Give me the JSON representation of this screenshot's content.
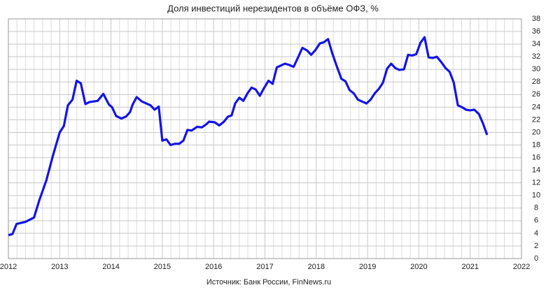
{
  "chart_data": {
    "type": "line",
    "title": "Доля инвестиций нерезидентов в объёме ОФЗ, %",
    "source": "Источник: Банк России, FinNews.ru",
    "xlim": [
      2012,
      2022
    ],
    "xticks": [
      2012,
      2013,
      2014,
      2015,
      2016,
      2017,
      2018,
      2019,
      2020,
      2021,
      2022
    ],
    "ylim": [
      0,
      38
    ],
    "yticks": [
      0,
      2,
      4,
      6,
      8,
      10,
      12,
      14,
      16,
      18,
      20,
      22,
      24,
      26,
      28,
      30,
      32,
      34,
      36,
      38
    ],
    "grid": true,
    "y_axis_side": "right",
    "series": [
      {
        "color": "#1414e6",
        "x": [
          2012.0,
          2012.08,
          2012.16,
          2012.33,
          2012.5,
          2012.6,
          2012.74,
          2012.87,
          2013.0,
          2013.08,
          2013.16,
          2013.25,
          2013.33,
          2013.41,
          2013.5,
          2013.58,
          2013.74,
          2013.85,
          2013.96,
          2014.02,
          2014.1,
          2014.2,
          2014.29,
          2014.37,
          2014.42,
          2014.5,
          2014.6,
          2014.77,
          2014.85,
          2014.93,
          2015.0,
          2015.08,
          2015.16,
          2015.25,
          2015.33,
          2015.41,
          2015.49,
          2015.57,
          2015.68,
          2015.77,
          2015.86,
          2015.91,
          2016.02,
          2016.11,
          2016.2,
          2016.28,
          2016.35,
          2016.42,
          2016.5,
          2016.58,
          2016.66,
          2016.74,
          2016.82,
          2016.9,
          2016.98,
          2017.07,
          2017.15,
          2017.23,
          2017.31,
          2017.39,
          2017.47,
          2017.56,
          2017.64,
          2017.73,
          2017.82,
          2017.9,
          2017.98,
          2018.07,
          2018.15,
          2018.23,
          2018.31,
          2018.39,
          2018.49,
          2018.57,
          2018.65,
          2018.73,
          2018.81,
          2018.89,
          2018.98,
          2019.06,
          2019.14,
          2019.22,
          2019.3,
          2019.38,
          2019.46,
          2019.54,
          2019.62,
          2019.71,
          2019.79,
          2019.87,
          2019.95,
          2020.03,
          2020.11,
          2020.19,
          2020.27,
          2020.35,
          2020.44,
          2020.52,
          2020.6,
          2020.68,
          2020.76,
          2020.84,
          2020.92,
          2021.0,
          2021.08,
          2021.17,
          2021.25,
          2021.33
        ],
        "values": [
          3.7,
          3.9,
          5.5,
          5.8,
          6.5,
          9.2,
          12.4,
          16.4,
          20.0,
          21.0,
          24.3,
          25.2,
          28.2,
          27.8,
          24.5,
          24.8,
          25.0,
          26.1,
          24.4,
          24.0,
          22.6,
          22.2,
          22.5,
          23.2,
          24.4,
          25.6,
          24.9,
          24.3,
          23.6,
          24.1,
          18.7,
          18.9,
          18.0,
          18.2,
          18.2,
          18.7,
          20.4,
          20.3,
          20.9,
          20.8,
          21.3,
          21.7,
          21.6,
          21.1,
          21.7,
          22.5,
          22.7,
          24.6,
          25.5,
          25.0,
          26.2,
          27.1,
          26.8,
          25.8,
          27.0,
          28.2,
          27.7,
          30.3,
          30.6,
          30.9,
          30.7,
          30.4,
          31.8,
          33.4,
          33.0,
          32.3,
          33.0,
          34.1,
          34.3,
          34.8,
          32.6,
          30.7,
          28.5,
          28.1,
          26.7,
          26.2,
          25.2,
          24.9,
          24.6,
          25.2,
          26.2,
          26.9,
          27.9,
          30.1,
          30.9,
          30.2,
          29.9,
          30.0,
          32.3,
          32.2,
          32.4,
          34.2,
          35.1,
          31.9,
          31.8,
          32.0,
          31.1,
          30.2,
          29.6,
          27.9,
          24.3,
          24.0,
          23.6,
          23.5,
          23.6,
          22.9,
          21.4,
          19.6
        ]
      }
    ]
  }
}
